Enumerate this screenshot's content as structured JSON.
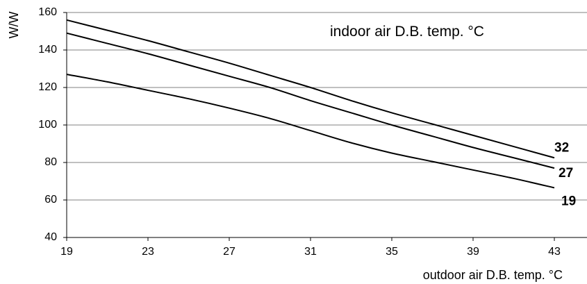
{
  "chart_data": {
    "type": "line",
    "ylabel": "W/W",
    "xlabel": "outdoor air D.B. temp. °C",
    "annotation": "indoor air D.B. temp. °C",
    "xlim": [
      19,
      45
    ],
    "ylim": [
      40,
      160
    ],
    "x_ticks": [
      19,
      23,
      27,
      31,
      35,
      39,
      43
    ],
    "y_ticks": [
      40,
      60,
      80,
      100,
      120,
      140,
      160
    ],
    "grid": "horizontal",
    "x": [
      19,
      21,
      23,
      25,
      27,
      29,
      31,
      33,
      35,
      37,
      39,
      41,
      43
    ],
    "series": [
      {
        "name": "32",
        "values": [
          156,
          150.5,
          145,
          139,
          133,
          126.5,
          120,
          113,
          106.5,
          100.5,
          94.5,
          88.5,
          82.5
        ]
      },
      {
        "name": "27",
        "values": [
          149,
          143.5,
          138,
          132,
          126,
          120,
          113,
          106.5,
          100,
          94,
          88,
          82.5,
          77
        ]
      },
      {
        "name": "19",
        "values": [
          127,
          123,
          118.5,
          114,
          109,
          103.5,
          97,
          90.5,
          85,
          80.5,
          76,
          71.5,
          66.5
        ]
      }
    ]
  }
}
